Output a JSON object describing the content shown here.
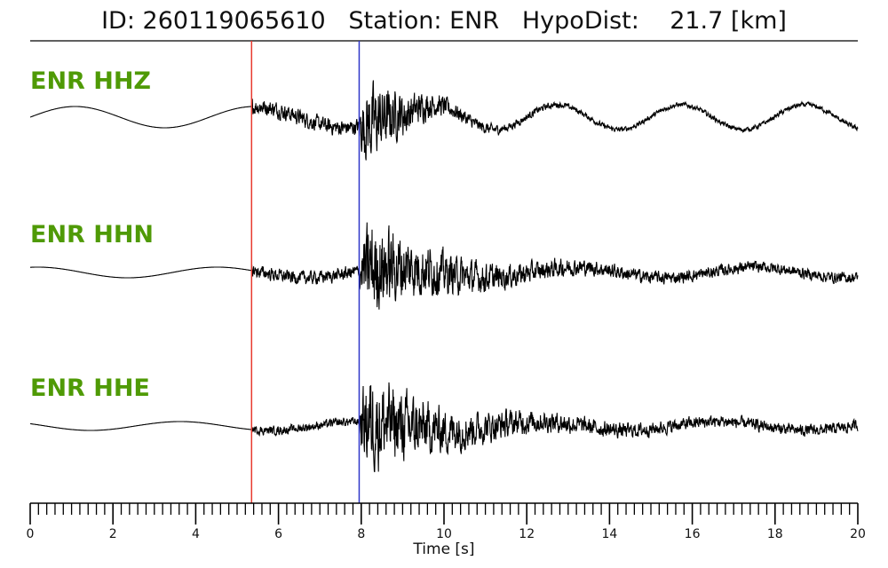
{
  "header": {
    "id_label": "ID:",
    "id_value": "260119065610",
    "station_label": "Station:",
    "station_value": "ENR",
    "dist_label": "HypoDist:",
    "dist_value": "21.7",
    "dist_unit": "[km]"
  },
  "colors": {
    "label": "#4f9a06",
    "trace": "#000000",
    "p_pick": "#e8392f",
    "s_pick": "#2f37c8"
  },
  "chart_data": {
    "type": "line",
    "title": "ID: 260119065610   Station: ENR   HypoDist:    21.7 [km]",
    "xlabel": "Time [s]",
    "xlim": [
      0,
      20
    ],
    "x_major_ticks": [
      0,
      2,
      4,
      6,
      8,
      10,
      12,
      14,
      16,
      18,
      20
    ],
    "x_minor_step": 0.2,
    "picks": [
      {
        "phase": "P",
        "time": 5.35,
        "color": "#e8392f"
      },
      {
        "phase": "S",
        "time": 7.95,
        "color": "#2f37c8"
      }
    ],
    "series": [
      {
        "name": "ENR HHZ",
        "p_amp": 0.22,
        "s_amp": 1.0,
        "coda_decay": 0.9,
        "low_freq_amp": 0.24
      },
      {
        "name": "ENR HHN",
        "p_amp": 0.18,
        "s_amp": 1.0,
        "coda_decay": 0.55,
        "low_freq_amp": 0.12
      },
      {
        "name": "ENR HHE",
        "p_amp": 0.12,
        "s_amp": 1.0,
        "coda_decay": 0.5,
        "low_freq_amp": 0.1
      }
    ]
  }
}
